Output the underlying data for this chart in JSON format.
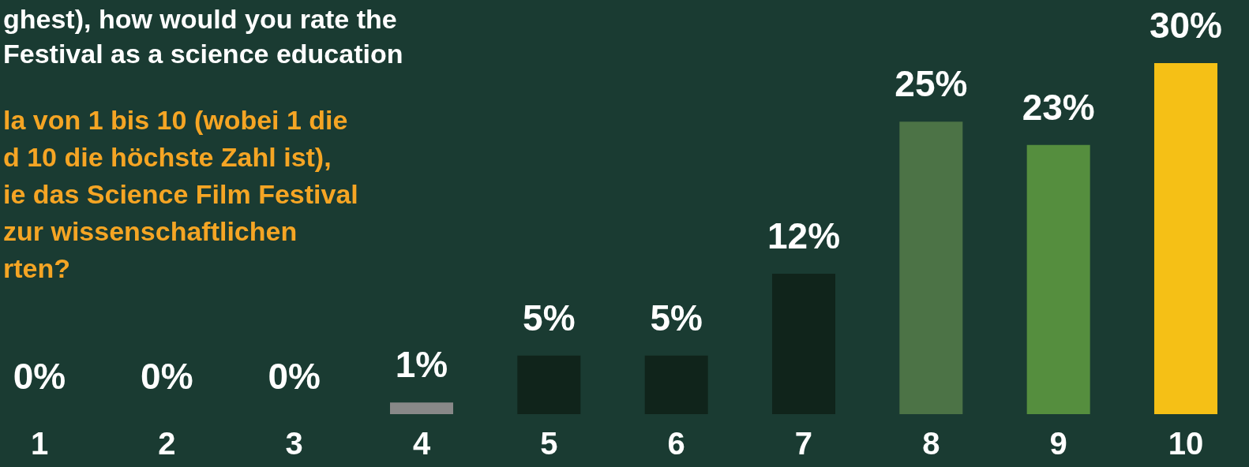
{
  "chart_data": {
    "type": "bar",
    "title": "ghest), how would you rate the\nFestival as a science education",
    "subtitle": "la von 1 bis 10 (wobei 1 die\nd 10 die höchste Zahl ist),\nie das Science Film Festival\nzur wissenschaftlichen\nrten?",
    "categories": [
      "1",
      "2",
      "3",
      "4",
      "5",
      "6",
      "7",
      "8",
      "9",
      "10"
    ],
    "values": [
      0,
      0,
      0,
      1,
      5,
      5,
      12,
      25,
      23,
      30
    ],
    "value_labels": [
      "0%",
      "0%",
      "0%",
      "1%",
      "5%",
      "5%",
      "12%",
      "25%",
      "23%",
      "30%"
    ],
    "colors": [
      "#888888",
      "#888888",
      "#888888",
      "#888888",
      "#10241b",
      "#10241b",
      "#10241b",
      "#4c7346",
      "#558e3e",
      "#f5c016"
    ]
  }
}
